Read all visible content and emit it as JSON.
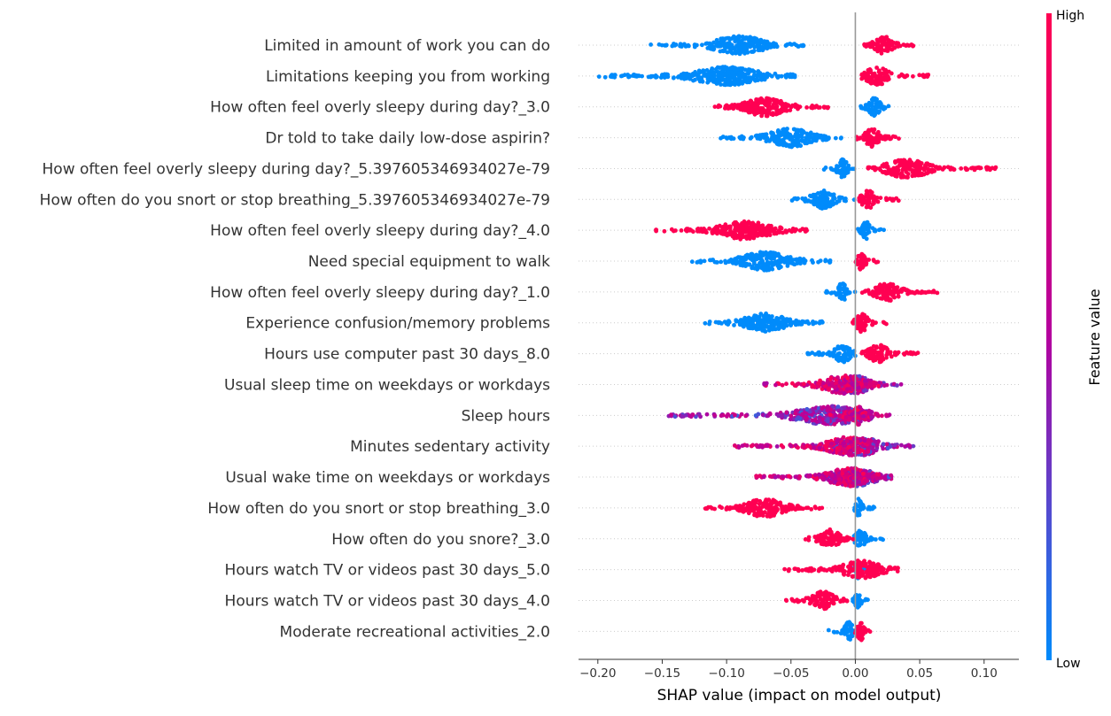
{
  "chart_data": {
    "type": "scatter",
    "subtype": "shap-beeswarm-summary",
    "xlabel": "SHAP value (impact on model output)",
    "xlim": [
      -0.215,
      0.127
    ],
    "xticks": [
      -0.2,
      -0.15,
      -0.1,
      -0.05,
      0.0,
      0.05,
      0.1
    ],
    "xtick_labels": [
      "−0.20",
      "−0.15",
      "−0.10",
      "−0.05",
      "0.00",
      "0.05",
      "0.10"
    ],
    "grid": false,
    "zero_line": true,
    "colorbar": {
      "label": "Feature value",
      "high_label": "High",
      "low_label": "Low",
      "high_color": "#ff0052",
      "mid_color": "#b4009e",
      "low_color": "#008bfb"
    },
    "features": [
      {
        "name": "Limited in amount of work you can do",
        "low_range": [
          -0.16,
          -0.04
        ],
        "high_range": [
          0.007,
          0.047
        ],
        "low_center": -0.09,
        "high_center": 0.022,
        "mixed": false
      },
      {
        "name": "Limitations keeping you from working",
        "low_range": [
          -0.2,
          -0.047
        ],
        "high_range": [
          0.005,
          0.057
        ],
        "low_center": -0.1,
        "high_center": 0.017,
        "mixed": false
      },
      {
        "name": "How often feel overly sleepy during day?_3.0",
        "low_range": [
          0.003,
          0.032
        ],
        "high_range": [
          -0.11,
          -0.017
        ],
        "low_center": 0.015,
        "high_center": -0.07,
        "mixed": false
      },
      {
        "name": "Dr told to take daily low-dose aspirin?",
        "low_range": [
          -0.105,
          -0.005
        ],
        "high_range": [
          0.0,
          0.035
        ],
        "low_center": -0.05,
        "high_center": 0.013,
        "mixed": false
      },
      {
        "name": "How often feel overly sleepy during day?_5.397605346934027e-79",
        "low_range": [
          -0.025,
          0.0
        ],
        "high_range": [
          0.01,
          0.11
        ],
        "low_center": -0.01,
        "high_center": 0.04,
        "mixed": false
      },
      {
        "name": "How often do you snort or stop breathing_5.397605346934027e-79",
        "low_range": [
          -0.052,
          0.0
        ],
        "high_range": [
          0.003,
          0.035
        ],
        "low_center": -0.025,
        "high_center": 0.01,
        "mixed": false
      },
      {
        "name": "How often feel overly sleepy during day?_4.0",
        "low_range": [
          0.002,
          0.023
        ],
        "high_range": [
          -0.155,
          -0.037
        ],
        "low_center": 0.008,
        "high_center": -0.085,
        "mixed": false
      },
      {
        "name": "Need special equipment to walk",
        "low_range": [
          -0.127,
          -0.017
        ],
        "high_range": [
          0.0,
          0.018
        ],
        "low_center": -0.07,
        "high_center": 0.005,
        "mixed": false
      },
      {
        "name": "How often feel overly sleepy during day?_1.0",
        "low_range": [
          -0.023,
          0.0
        ],
        "high_range": [
          0.005,
          0.065
        ],
        "low_center": -0.01,
        "high_center": 0.025,
        "mixed": false
      },
      {
        "name": "Experience confusion/memory problems",
        "low_range": [
          -0.117,
          -0.02
        ],
        "high_range": [
          -0.002,
          0.027
        ],
        "low_center": -0.07,
        "high_center": 0.005,
        "mixed": false
      },
      {
        "name": "Hours use computer past 30 days_8.0",
        "low_range": [
          -0.037,
          0.0
        ],
        "high_range": [
          0.005,
          0.05
        ],
        "low_center": -0.01,
        "high_center": 0.018,
        "mixed": false
      },
      {
        "name": "Usual sleep time on weekdays or workdays",
        "low_range": [
          -0.03,
          0.037
        ],
        "high_range": [
          -0.072,
          0.02
        ],
        "low_center": 0.0,
        "high_center": -0.01,
        "mixed": true
      },
      {
        "name": "Sleep hours",
        "low_range": [
          -0.147,
          0.012
        ],
        "high_range": [
          -0.02,
          0.027
        ],
        "low_center": -0.02,
        "high_center": 0.003,
        "mixed": true
      },
      {
        "name": "Minutes sedentary activity",
        "low_range": [
          -0.04,
          0.045
        ],
        "high_range": [
          -0.095,
          0.01
        ],
        "low_center": 0.005,
        "high_center": -0.005,
        "mixed": true
      },
      {
        "name": "Usual wake time on weekdays or workdays",
        "low_range": [
          -0.065,
          0.028
        ],
        "high_range": [
          -0.077,
          0.02
        ],
        "low_center": 0.0,
        "high_center": -0.005,
        "mixed": true
      },
      {
        "name": "How often do you snort or stop breathing_3.0",
        "low_range": [
          -0.002,
          0.015
        ],
        "high_range": [
          -0.117,
          -0.025
        ],
        "low_center": 0.003,
        "high_center": -0.07,
        "mixed": false
      },
      {
        "name": "How often do you snore?_3.0",
        "low_range": [
          -0.002,
          0.022
        ],
        "high_range": [
          -0.045,
          0.002
        ],
        "low_center": 0.004,
        "high_center": -0.02,
        "mixed": false
      },
      {
        "name": "Hours watch TV or videos past 30 days_5.0",
        "low_range": [
          -0.002,
          0.012
        ],
        "high_range": [
          -0.055,
          0.033
        ],
        "low_center": 0.002,
        "high_center": 0.005,
        "mixed": false
      },
      {
        "name": "Hours watch TV or videos past 30 days_4.0",
        "low_range": [
          -0.002,
          0.01
        ],
        "high_range": [
          -0.055,
          -0.003
        ],
        "low_center": 0.002,
        "high_center": -0.025,
        "mixed": false
      },
      {
        "name": "Moderate recreational activities_2.0",
        "low_range": [
          -0.022,
          0.0
        ],
        "high_range": [
          0.0,
          0.016
        ],
        "low_center": -0.005,
        "high_center": 0.004,
        "mixed": false
      }
    ]
  }
}
